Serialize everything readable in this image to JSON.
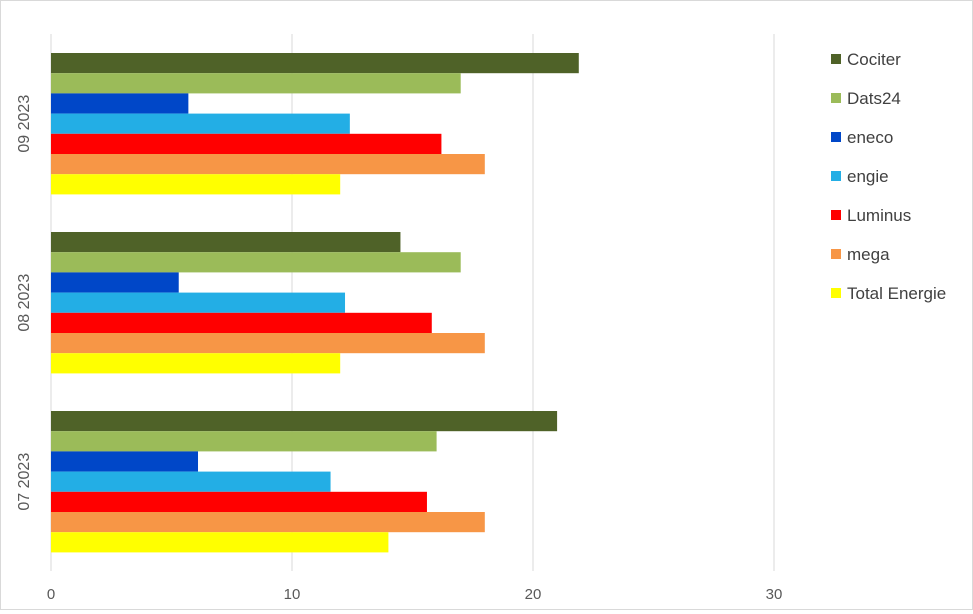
{
  "chart_data": {
    "type": "bar",
    "orientation": "horizontal",
    "title": "",
    "xlabel": "",
    "ylabel": "",
    "xlim": [
      0,
      35
    ],
    "xticks": [
      0,
      10,
      20,
      30
    ],
    "grid": "vertical",
    "legend_position": "right",
    "categories": [
      "09 2023",
      "08 2023",
      "07 2023"
    ],
    "series": [
      {
        "name": "Cociter",
        "color": "#4f6228",
        "values": [
          21.9,
          14.5,
          21.0
        ]
      },
      {
        "name": "Dats24",
        "color": "#9bbb59",
        "values": [
          17.0,
          17.0,
          16.0
        ]
      },
      {
        "name": "eneco",
        "color": "#0047c8",
        "values": [
          5.7,
          5.3,
          6.1
        ]
      },
      {
        "name": "engie",
        "color": "#23aee5",
        "values": [
          12.4,
          12.2,
          11.6
        ]
      },
      {
        "name": "Luminus",
        "color": "#ff0000",
        "values": [
          16.2,
          15.8,
          15.6
        ]
      },
      {
        "name": "mega",
        "color": "#f79646",
        "values": [
          18.0,
          18.0,
          18.0
        ]
      },
      {
        "name": "Total Energie",
        "color": "#ffff00",
        "values": [
          12.0,
          12.0,
          14.0
        ]
      }
    ]
  }
}
